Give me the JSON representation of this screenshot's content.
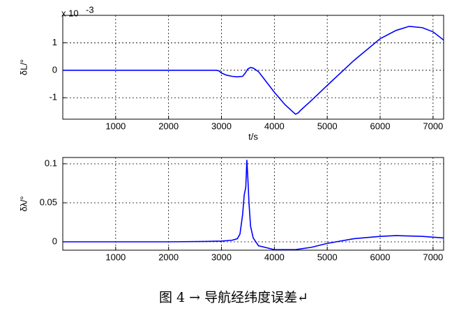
{
  "chart_data": [
    {
      "type": "line",
      "multiplier": {
        "base": "x 10",
        "exponent": "-3"
      },
      "xlabel": "t/s",
      "ylabel": "δL/°",
      "x": [
        0,
        1000,
        2000,
        2800,
        2900,
        2950,
        3000,
        3100,
        3200,
        3300,
        3400,
        3450,
        3500,
        3550,
        3600,
        3700,
        3800,
        4000,
        4200,
        4400,
        4450,
        4500,
        4700,
        5000,
        5500,
        6000,
        6300,
        6550,
        6800,
        7000,
        7200
      ],
      "series": [
        {
          "color": "#0000ff",
          "values": [
            0,
            0,
            0,
            0,
            0,
            -0.02,
            -0.1,
            -0.18,
            -0.22,
            -0.24,
            -0.22,
            -0.1,
            0.05,
            0.1,
            0.08,
            -0.05,
            -0.3,
            -0.8,
            -1.25,
            -1.6,
            -1.55,
            -1.45,
            -1.1,
            -0.55,
            0.35,
            1.15,
            1.45,
            1.6,
            1.55,
            1.4,
            1.1
          ]
        }
      ],
      "xlim": [
        0,
        7200
      ],
      "xticks": [
        1000,
        2000,
        3000,
        4000,
        5000,
        6000,
        7000
      ],
      "ylim": [
        -1.78,
        2.0
      ],
      "yticks": [
        -1,
        0,
        1
      ],
      "grid": true
    },
    {
      "type": "line",
      "ylabel": "δλ/°",
      "x": [
        0,
        1000,
        2000,
        2700,
        3000,
        3200,
        3300,
        3350,
        3400,
        3430,
        3460,
        3480,
        3500,
        3520,
        3550,
        3600,
        3650,
        3700,
        4000,
        4400,
        4700,
        5000,
        5500,
        6000,
        6300,
        6800,
        7200
      ],
      "series": [
        {
          "color": "#0000ff",
          "values": [
            0,
            0,
            0,
            0.0005,
            0.001,
            0.002,
            0.004,
            0.01,
            0.035,
            0.06,
            0.07,
            0.105,
            0.08,
            0.05,
            0.02,
            0.005,
            0,
            -0.005,
            -0.01,
            -0.01,
            -0.007,
            -0.002,
            0.004,
            0.007,
            0.008,
            0.007,
            0.005
          ]
        }
      ],
      "xlim": [
        0,
        7200
      ],
      "xticks": [
        1000,
        2000,
        3000,
        4000,
        5000,
        6000,
        7000
      ],
      "ylim": [
        -0.0107,
        0.108
      ],
      "yticks": [
        0,
        0.05,
        0.1
      ],
      "grid": true
    }
  ],
  "caption": "图 4 → 导航经纬度误差↵"
}
